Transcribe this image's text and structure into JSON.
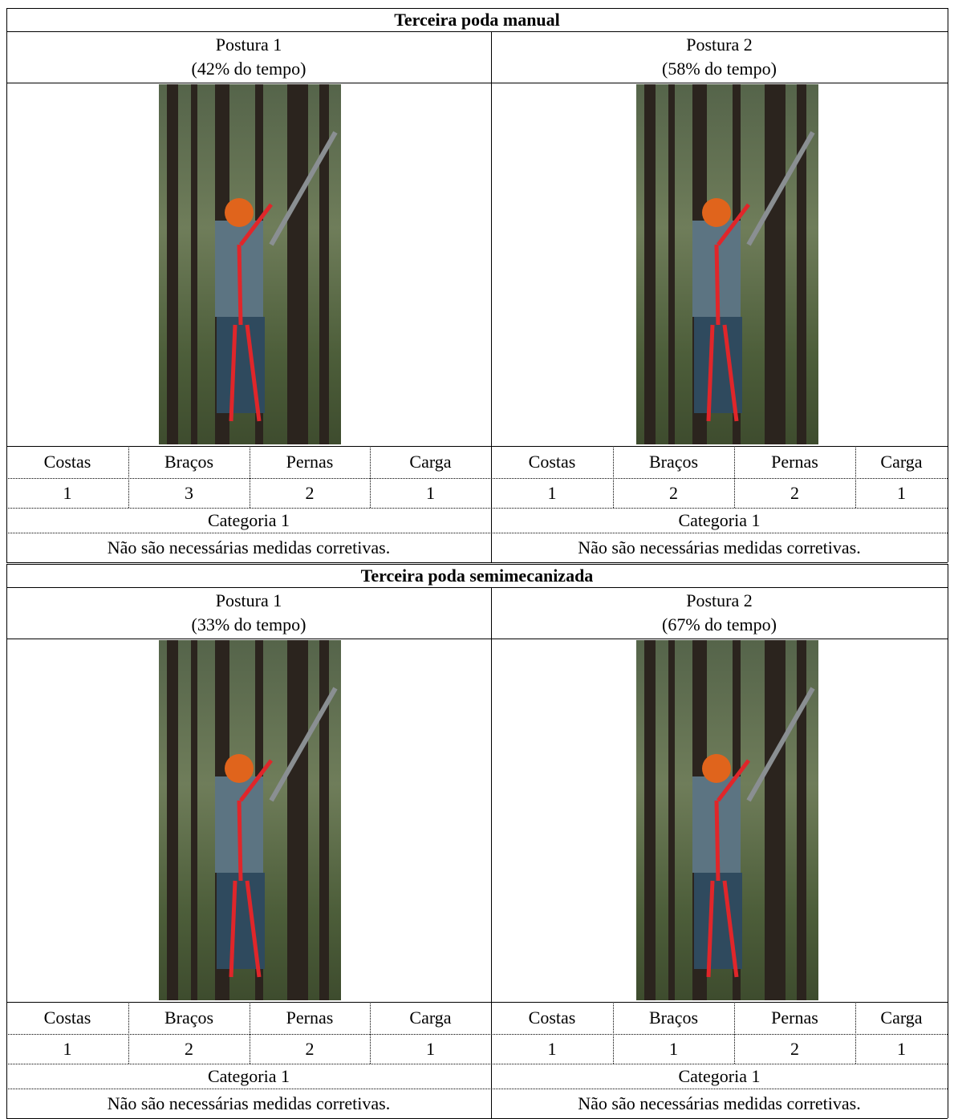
{
  "sections": [
    {
      "title": "Terceira poda manual",
      "postures": [
        {
          "label": "Postura 1",
          "time": "(42% do tempo)",
          "headers": [
            "Costas",
            "Braços",
            "Pernas",
            "Carga"
          ],
          "scores": [
            1,
            3,
            2,
            1
          ],
          "category": "Categoria 1",
          "action": "Não são necessárias medidas corretivas."
        },
        {
          "label": "Postura 2",
          "time": "(58% do tempo)",
          "headers": [
            "Costas",
            "Braços",
            "Pernas",
            "Carga"
          ],
          "scores": [
            1,
            2,
            2,
            1
          ],
          "category": "Categoria 1",
          "action": "Não são necessárias medidas corretivas."
        }
      ]
    },
    {
      "title": "Terceira poda semimecanizada",
      "postures": [
        {
          "label": "Postura 1",
          "time": "(33% do tempo)",
          "headers": [
            "Costas",
            "Braços",
            "Pernas",
            "Carga"
          ],
          "scores": [
            1,
            2,
            2,
            1
          ],
          "category": "Categoria 1",
          "action": "Não são necessárias medidas corretivas."
        },
        {
          "label": "Postura 2",
          "time": "(67% do tempo)",
          "headers": [
            "Costas",
            "Braços",
            "Pernas",
            "Carga"
          ],
          "scores": [
            1,
            1,
            2,
            1
          ],
          "category": "Categoria 1",
          "action": "Não são necessárias medidas corretivas."
        }
      ]
    }
  ]
}
